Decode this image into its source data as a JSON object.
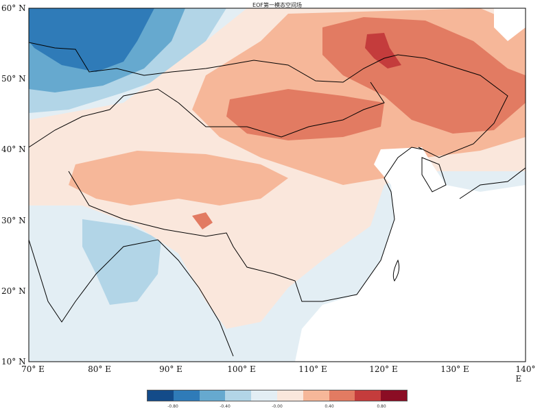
{
  "title": "EOF第一模态空间场",
  "map": {
    "lon_range": [
      70,
      140
    ],
    "lat_range": [
      10,
      60
    ],
    "lat_labels": [
      "60° N",
      "50° N",
      "40° N",
      "30° N",
      "20° N",
      "10° N"
    ],
    "lon_labels": [
      "70° E",
      "80° E",
      "90° E",
      "100° E",
      "110° E",
      "120° E",
      "130° E",
      "140° E"
    ]
  },
  "colorbar": {
    "colors": [
      "#134b89",
      "#2f7bb8",
      "#66a9cf",
      "#b2d5e7",
      "#e3eef4",
      "#fae7dc",
      "#f6b799",
      "#e27b62",
      "#c43c3c",
      "#8b0d24"
    ],
    "tick_labels": [
      "-0.80",
      "-0.40",
      "-0.00",
      "0.40",
      "0.80"
    ]
  }
}
